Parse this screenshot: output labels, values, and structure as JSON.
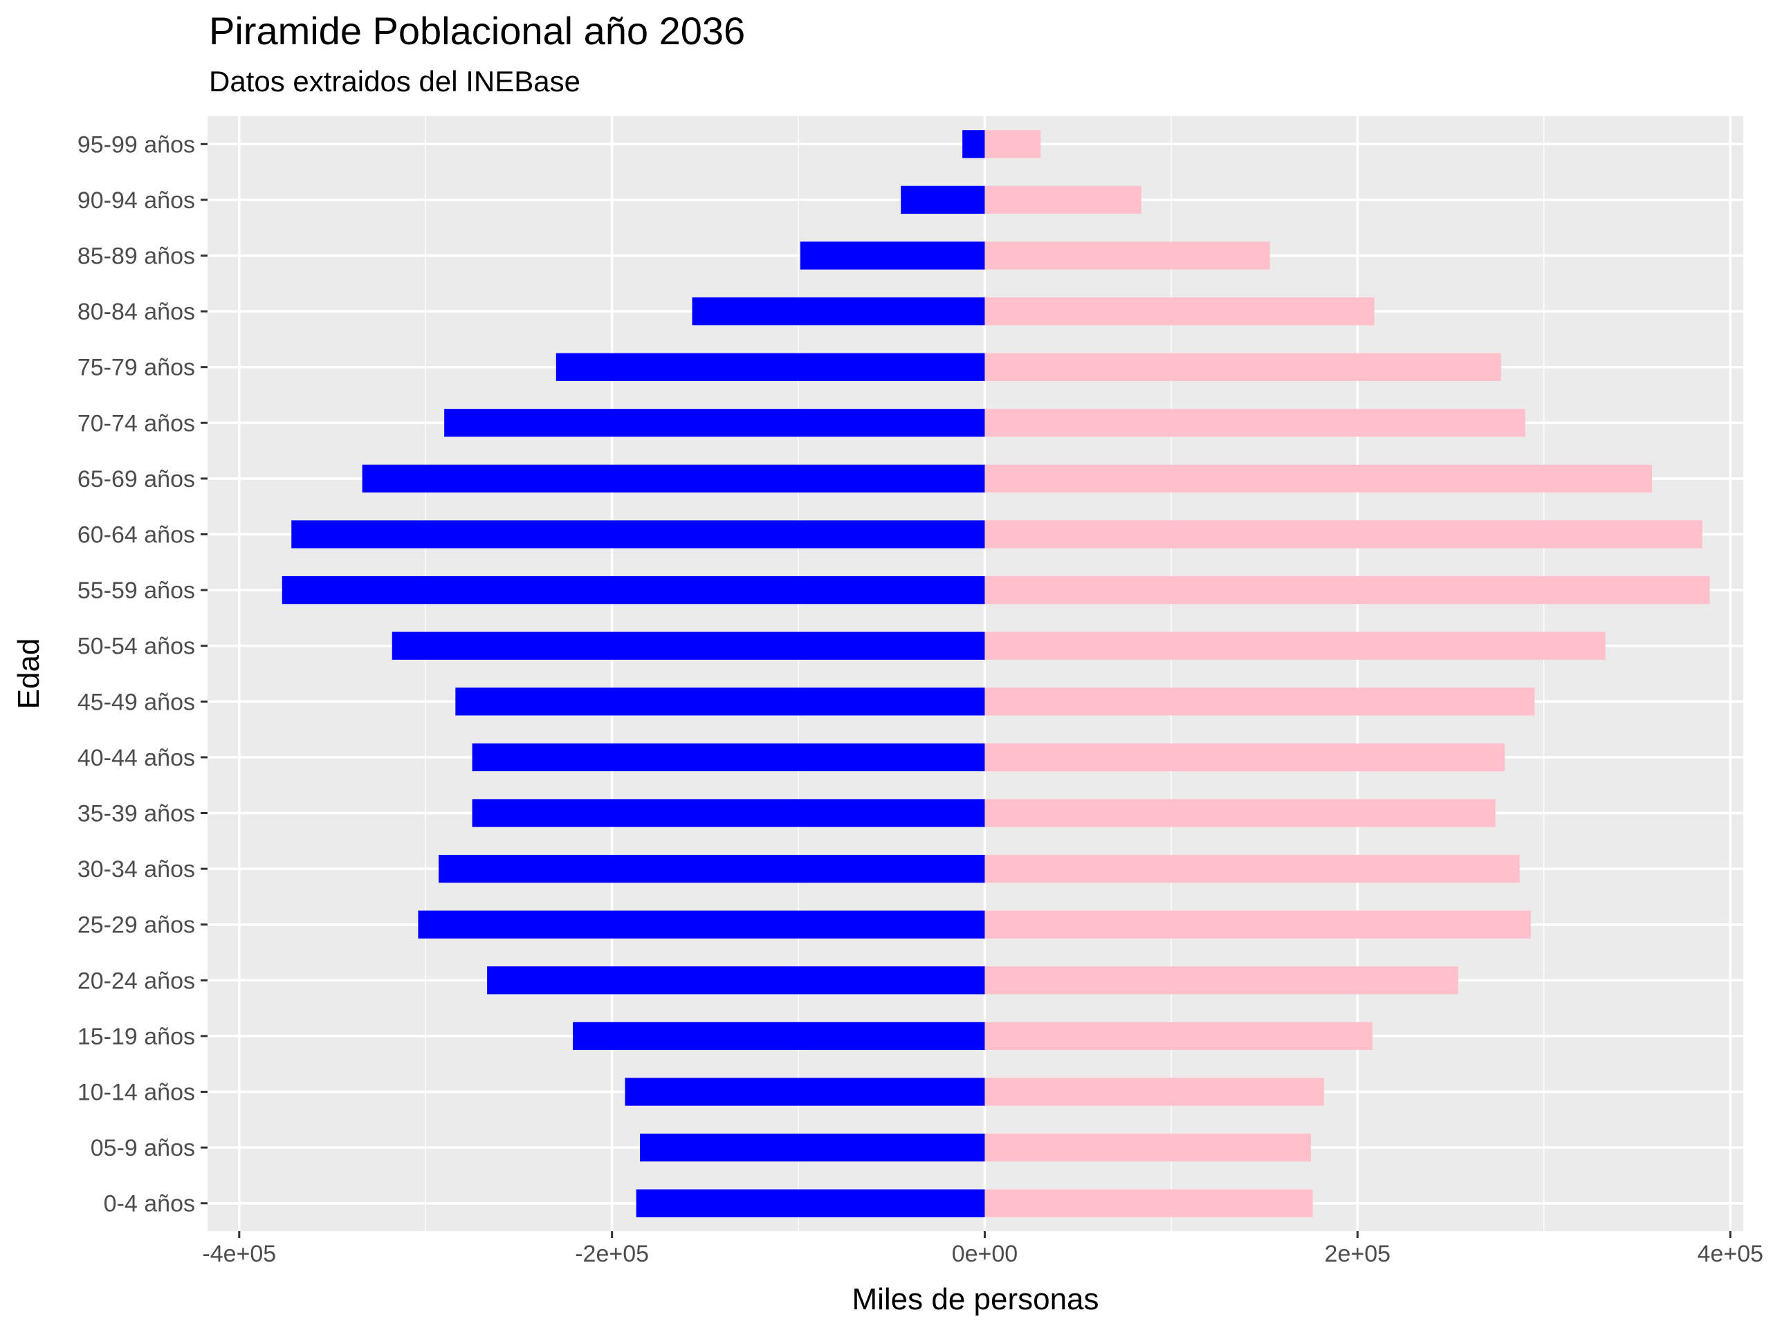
{
  "title": "Piramide Poblacional año 2036",
  "subtitle": "Datos extraidos del INEBase",
  "colors": {
    "panel": "#EBEBEB",
    "grid": "#FFFFFF",
    "male": "#0000FF",
    "female": "#FFC0CB",
    "tick": "#333333"
  },
  "chart_data": {
    "type": "bar",
    "orientation": "horizontal",
    "xlabel": "Miles de personas",
    "ylabel": "Edad",
    "xlim": [
      -417000,
      407000
    ],
    "grid": true,
    "x_ticks": [
      -400000,
      -200000,
      0,
      200000,
      400000
    ],
    "x_tick_labels": [
      "-4e+05",
      "-2e+05",
      "0e+00",
      "2e+05",
      "4e+05"
    ],
    "categories": [
      "0-4 años",
      "05-9 años",
      "10-14 años",
      "15-19 años",
      "20-24 años",
      "25-29 años",
      "30-34 años",
      "35-39 años",
      "40-44 años",
      "45-49 años",
      "50-54 años",
      "55-59 años",
      "60-64 años",
      "65-69 años",
      "70-74 años",
      "75-79 años",
      "80-84 años",
      "85-89 años",
      "90-94 años",
      "95-99 años"
    ],
    "series": [
      {
        "values": [
          -187000,
          -185000,
          -193000,
          -221000,
          -267000,
          -304000,
          -293000,
          -275000,
          -275000,
          -284000,
          -318000,
          -377000,
          -372000,
          -334000,
          -290000,
          -230000,
          -157000,
          -99000,
          -45000,
          -12000
        ]
      },
      {
        "values": [
          176000,
          175000,
          182000,
          208000,
          254000,
          293000,
          287000,
          274000,
          279000,
          295000,
          333000,
          389000,
          385000,
          358000,
          290000,
          277000,
          209000,
          153000,
          84000,
          30000
        ]
      }
    ]
  }
}
